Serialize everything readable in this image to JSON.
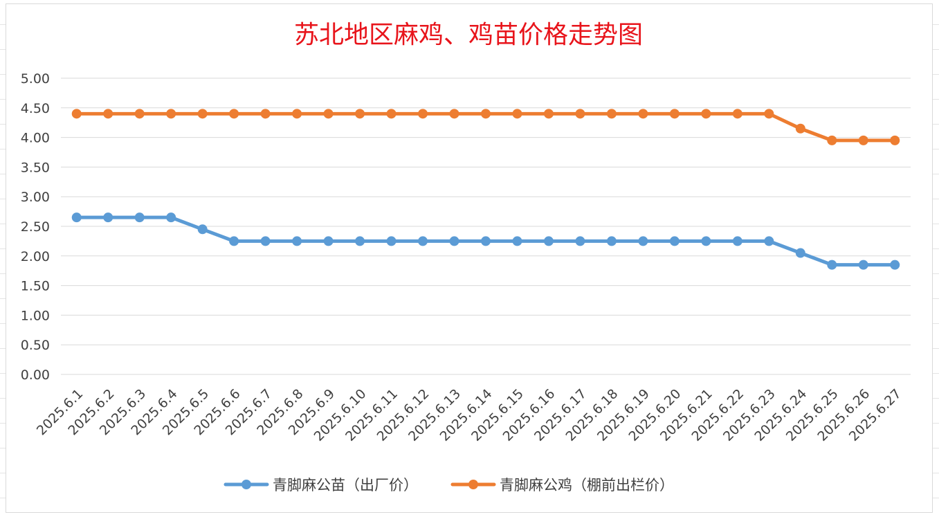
{
  "chart_data": {
    "type": "line",
    "title": "苏北地区麻鸡、鸡苗价格走势图",
    "xlabel": "",
    "ylabel": "",
    "ylim": [
      0,
      5
    ],
    "yticks": [
      "0.00",
      "0.50",
      "1.00",
      "1.50",
      "2.00",
      "2.50",
      "3.00",
      "3.50",
      "4.00",
      "4.50",
      "5.00"
    ],
    "grid": true,
    "legend_position": "bottom",
    "categories": [
      "2025.6.1",
      "2025.6.2",
      "2025.6.3",
      "2025.6.4",
      "2025.6.5",
      "2025.6.6",
      "2025.6.7",
      "2025.6.8",
      "2025.6.9",
      "2025.6.10",
      "2025.6.11",
      "2025.6.12",
      "2025.6.13",
      "2025.6.14",
      "2025.6.15",
      "2025.6.16",
      "2025.6.17",
      "2025.6.18",
      "2025.6.19",
      "2025.6.20",
      "2025.6.21",
      "2025.6.22",
      "2025.6.23",
      "2025.6.24",
      "2025.6.25",
      "2025.6.26",
      "2025.6.27"
    ],
    "series": [
      {
        "name": "青脚麻公苗（出厂价）",
        "color": "#5b9bd5",
        "values": [
          2.65,
          2.65,
          2.65,
          2.65,
          2.45,
          2.25,
          2.25,
          2.25,
          2.25,
          2.25,
          2.25,
          2.25,
          2.25,
          2.25,
          2.25,
          2.25,
          2.25,
          2.25,
          2.25,
          2.25,
          2.25,
          2.25,
          2.25,
          2.05,
          1.85,
          1.85,
          1.85
        ]
      },
      {
        "name": "青脚麻公鸡（棚前出栏价）",
        "color": "#ed7d31",
        "values": [
          4.4,
          4.4,
          4.4,
          4.4,
          4.4,
          4.4,
          4.4,
          4.4,
          4.4,
          4.4,
          4.4,
          4.4,
          4.4,
          4.4,
          4.4,
          4.4,
          4.4,
          4.4,
          4.4,
          4.4,
          4.4,
          4.4,
          4.4,
          4.15,
          3.95,
          3.95,
          3.95
        ]
      }
    ]
  }
}
